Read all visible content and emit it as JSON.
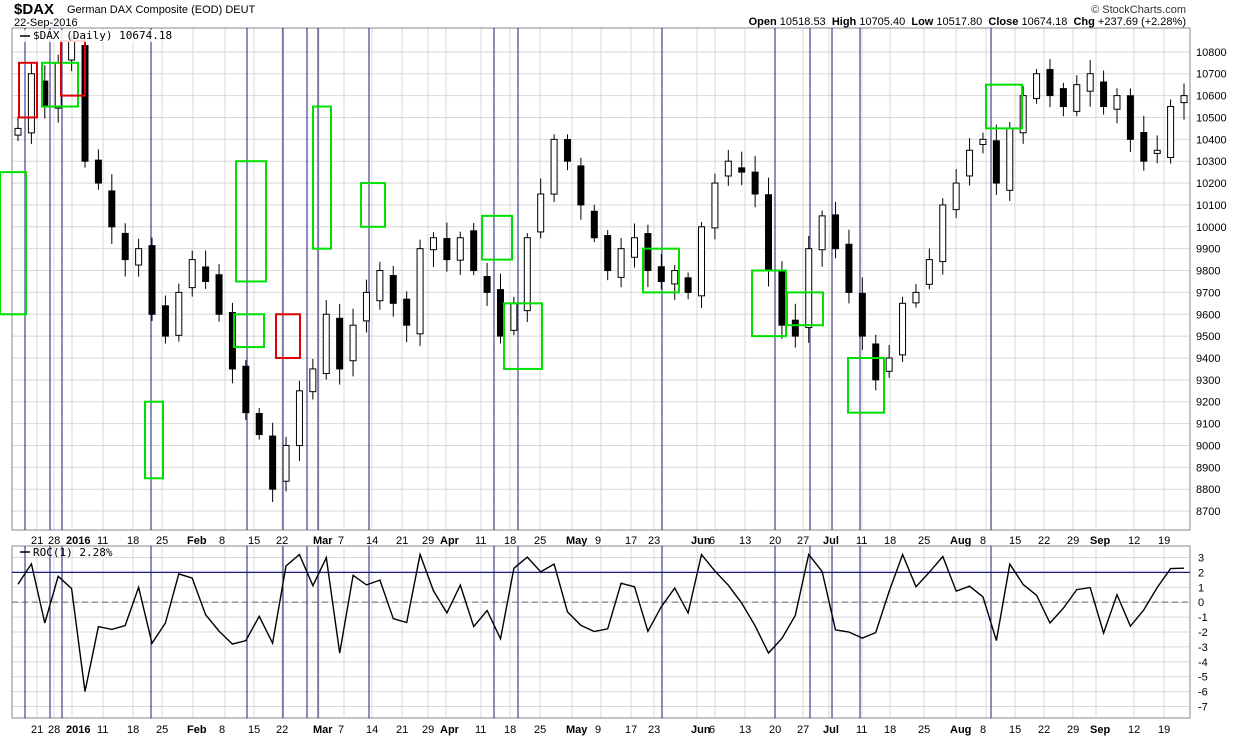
{
  "header": {
    "symbol": "$DAX",
    "name": "German DAX Composite (EOD)",
    "exchange": "DEUT",
    "date": "22-Sep-2016",
    "credit": "© StockCharts.com",
    "open_label": "Open",
    "open": "10518.53",
    "high_label": "High",
    "high": "10705.40",
    "low_label": "Low",
    "low": "10517.80",
    "close_label": "Close",
    "close": "10674.18",
    "chg_label": "Chg",
    "chg": "+237.69 (+2.28%)"
  },
  "chart_data": [
    {
      "type": "candlestick",
      "legend": "$DAX (Daily) 10674.18",
      "ylim": [
        8650,
        10900
      ],
      "y_ticks": [
        8700,
        8800,
        8900,
        9000,
        9100,
        9200,
        9300,
        9400,
        9500,
        9600,
        9700,
        9800,
        9900,
        10000,
        10100,
        10200,
        10300,
        10400,
        10500,
        10600,
        10700,
        10800
      ],
      "x_tick_labels": [
        "21",
        "28",
        "2016",
        "11",
        "18",
        "25",
        "Feb",
        "8",
        "15",
        "22",
        "Mar",
        "7",
        "14",
        "21",
        "29",
        "Apr",
        "11",
        "18",
        "25",
        "May",
        "9",
        "17",
        "23",
        "Jun",
        "6",
        "13",
        "20",
        "27",
        "Jul",
        "11",
        "18",
        "25",
        "Aug",
        "8",
        "15",
        "22",
        "29",
        "Sep",
        "12",
        "19"
      ],
      "close_path": [
        10450,
        10700,
        10550,
        10750,
        10850,
        10300,
        10200,
        10000,
        9850,
        9900,
        9600,
        9500,
        9700,
        9850,
        9750,
        9600,
        9350,
        9150,
        9050,
        8800,
        9000,
        9250,
        9350,
        9600,
        9350,
        9550,
        9700,
        9800,
        9650,
        9550,
        9900,
        9950,
        9850,
        9950,
        9800,
        9700,
        9500,
        9650,
        9950,
        10150,
        10400,
        10300,
        10100,
        9950,
        9800,
        9900,
        9950,
        9800,
        9750,
        9800,
        9700,
        10000,
        10200,
        10300,
        10250,
        10150,
        9800,
        9550,
        9500,
        9900,
        10050,
        9900,
        9700,
        9500,
        9300,
        9400,
        9650,
        9700,
        9850,
        10100,
        10200,
        10350,
        10400,
        10200,
        10450,
        10600,
        10700,
        10600,
        10550,
        10650,
        10700,
        10550,
        10600,
        10400,
        10300,
        10350,
        10550,
        10600
      ],
      "box_groups": {
        "green": [
          [
            9600,
            10250
          ],
          [
            8850,
            9200
          ],
          [
            9750,
            10300
          ],
          [
            9900,
            10550
          ],
          [
            10000,
            10200
          ],
          [
            9850,
            10050
          ],
          [
            9350,
            9650
          ],
          [
            9700,
            9900
          ],
          [
            9500,
            9800
          ],
          [
            9550,
            9700
          ],
          [
            9150,
            9400
          ],
          [
            9450,
            9600
          ],
          [
            10150,
            10350
          ],
          [
            10450,
            10650
          ],
          [
            10550,
            10750
          ]
        ],
        "red": [
          [
            10500,
            10750
          ],
          [
            10600,
            10850
          ],
          [
            9400,
            9600
          ]
        ]
      },
      "signal_lines": 17
    },
    {
      "type": "line",
      "legend": "ROC(1) 2.28%",
      "ylim": [
        -7.5,
        3.5
      ],
      "y_ticks": [
        -7,
        -6,
        -5,
        -4,
        -3,
        -2,
        -1,
        0,
        1,
        2,
        3
      ],
      "threshold": 2,
      "last_value": 2.28
    }
  ],
  "colors": {
    "candle_up": "#ffffff",
    "candle_down": "#000000",
    "box_green": "#00e000",
    "box_red": "#e00000",
    "signal_line": "#1b1b7a",
    "grid": "#d8d8d8",
    "threshold_line": "#1b1b7a"
  }
}
